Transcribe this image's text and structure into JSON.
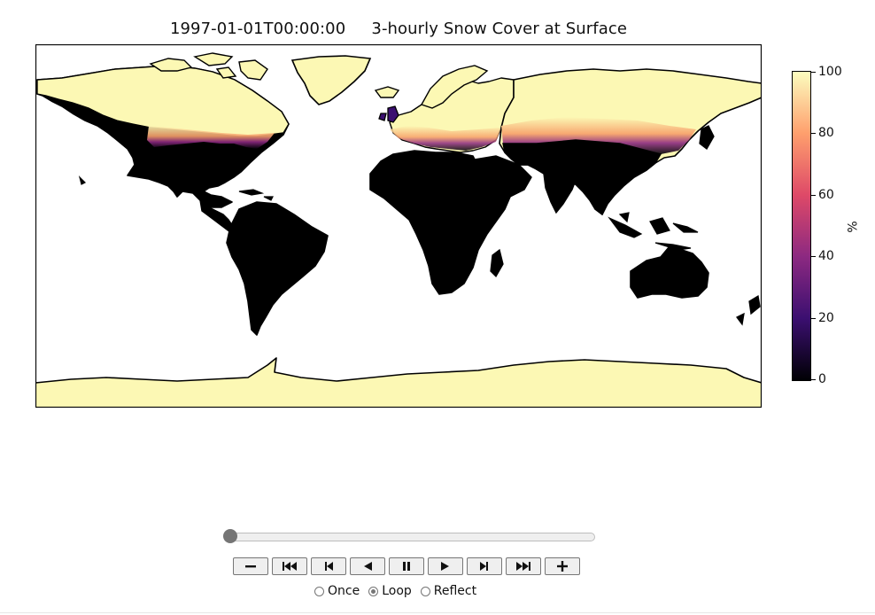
{
  "plot": {
    "title": "1997-01-01T00:00:00     3-hourly Snow Cover at Surface"
  },
  "colorbar": {
    "unit": "%",
    "ticks": [
      "100",
      "80",
      "60",
      "40",
      "20",
      "0"
    ],
    "range": [
      0,
      100
    ],
    "colormap": "magma",
    "colors": [
      "#000004",
      "#3b0f70",
      "#8c2981",
      "#de4968",
      "#fe9f6d",
      "#fcfdbf"
    ]
  },
  "map_colors": {
    "snow_full": "#fcf8b4",
    "snow_free": "#000000",
    "ocean": "#ffffff",
    "coastline": "#000000"
  },
  "player": {
    "slider_fraction": 0.0,
    "buttons": [
      {
        "name": "decrease-speed-button",
        "icon": "minus-icon"
      },
      {
        "name": "first-frame-button",
        "icon": "skip-to-start-icon"
      },
      {
        "name": "previous-frame-button",
        "icon": "step-back-icon"
      },
      {
        "name": "play-reverse-button",
        "icon": "play-reverse-icon"
      },
      {
        "name": "pause-button",
        "icon": "pause-icon"
      },
      {
        "name": "play-button",
        "icon": "play-icon"
      },
      {
        "name": "next-frame-button",
        "icon": "step-forward-icon"
      },
      {
        "name": "last-frame-button",
        "icon": "skip-to-end-icon"
      },
      {
        "name": "increase-speed-button",
        "icon": "plus-icon"
      }
    ],
    "modes": [
      {
        "label": "Once",
        "checked": false
      },
      {
        "label": "Loop",
        "checked": true
      },
      {
        "label": "Reflect",
        "checked": false
      }
    ]
  }
}
